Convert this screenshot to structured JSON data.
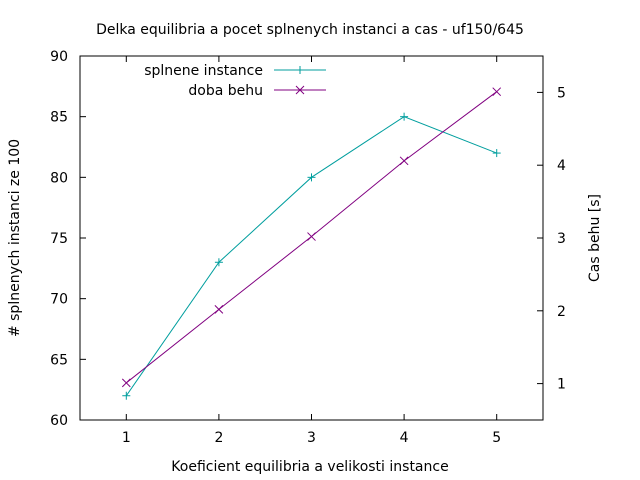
{
  "chart_data": {
    "type": "line",
    "title": "Delka equilibria a pocet splnenych instanci a cas - uf150/645",
    "xlabel": "Koeficient equilibria a velikosti instance",
    "ylabel": "# splnenych instanci ze 100",
    "y2label": "Cas behu [s]",
    "x": [
      1,
      2,
      3,
      4,
      5
    ],
    "xlim": [
      0.5,
      5.5
    ],
    "ylim": [
      60,
      90
    ],
    "y2lim": [
      0.5,
      5.5
    ],
    "xticks": [
      "1",
      "2",
      "3",
      "4",
      "5"
    ],
    "yticks": [
      "60",
      "65",
      "70",
      "75",
      "80",
      "85",
      "90"
    ],
    "y2ticks": [
      "1",
      "2",
      "3",
      "4",
      "5"
    ],
    "grid": false,
    "legend_position": "top-left",
    "series": [
      {
        "name": "splnene instance",
        "axis": "y",
        "values": [
          62,
          73,
          80,
          85,
          82
        ],
        "marker": "plus",
        "color": "#009e9e"
      },
      {
        "name": "doba behu",
        "axis": "y2",
        "values": [
          1.01,
          2.02,
          3.02,
          4.06,
          5.01
        ],
        "marker": "cross",
        "color": "#800080"
      }
    ]
  }
}
